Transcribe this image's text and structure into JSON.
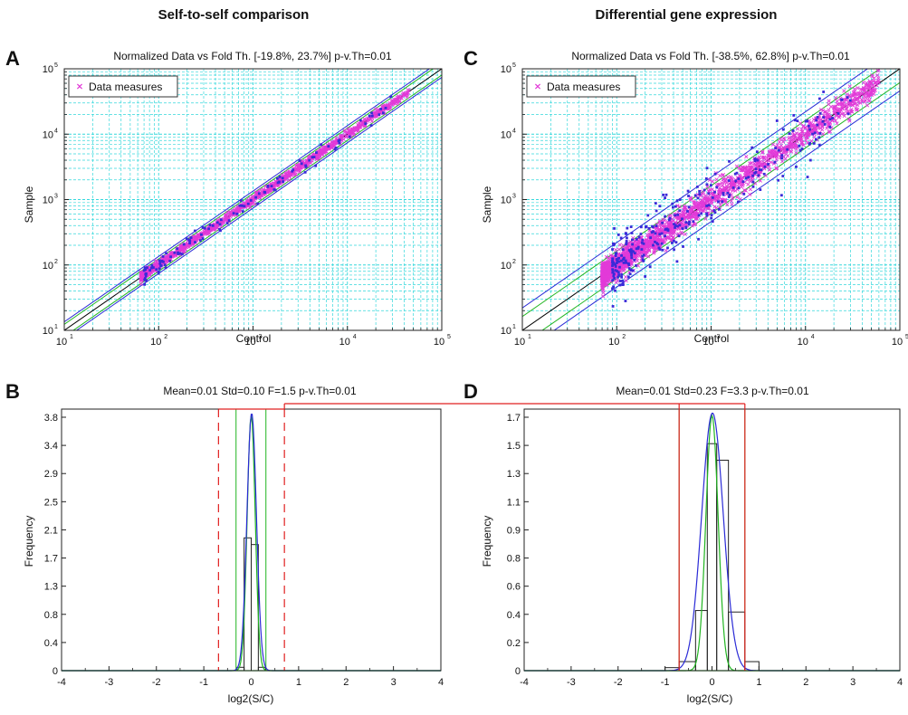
{
  "headings": {
    "left": "Self-to-self comparison",
    "right": "Differential gene expression"
  },
  "chart_data": [
    {
      "type": "scatter",
      "panel": "A",
      "title": "Normalized Data vs Fold Th. [-19.8%, 23.7%] p-v.Th=0.01",
      "xlabel": "Control",
      "ylabel": "Sample",
      "log_scale": true,
      "xlim": [
        10,
        100000
      ],
      "ylim": [
        10,
        100000
      ],
      "xticks": [
        "10",
        "10",
        "10",
        "10",
        "10"
      ],
      "tick_exponents": [
        "1",
        "2",
        "3",
        "4",
        "5"
      ],
      "grid": true,
      "legend": {
        "label": "Data measures",
        "position": "top-left",
        "marker": "x"
      },
      "series": [
        {
          "name": "Data measures",
          "marker": "x",
          "color": "#e23ad8",
          "x_range": [
            65,
            45000
          ],
          "spread_log10": 0.03,
          "approx_points": 1200
        },
        {
          "marker": "square",
          "color": "#3a2bd8",
          "x_range": [
            70,
            30000
          ],
          "spread_log10": 0.05,
          "approx_points": 120
        }
      ],
      "reference_lines": [
        {
          "label": "y=x",
          "color": "#000000",
          "factor": 1.0
        },
        {
          "color": "#21b521",
          "factor": 1.237
        },
        {
          "color": "#21b521",
          "factor": 0.802
        },
        {
          "color": "#2a2ad6",
          "factor": 1.35
        },
        {
          "color": "#2a2ad6",
          "factor": 0.74
        }
      ]
    },
    {
      "type": "scatter",
      "panel": "C",
      "title": "Normalized Data vs Fold Th. [-38.5%, 62.8%] p-v.Th=0.01",
      "xlabel": "Control",
      "ylabel": "Sample",
      "log_scale": true,
      "xlim": [
        10,
        100000
      ],
      "ylim": [
        10,
        100000
      ],
      "xticks": [
        "10",
        "10",
        "10",
        "10",
        "10"
      ],
      "tick_exponents": [
        "1",
        "2",
        "3",
        "4",
        "5"
      ],
      "grid": true,
      "legend": {
        "label": "Data measures",
        "position": "top-left",
        "marker": "x"
      },
      "series": [
        {
          "name": "Data measures",
          "marker": "x",
          "color": "#e23ad8",
          "x_range": [
            70,
            60000
          ],
          "spread_log10": 0.1,
          "approx_points": 1800
        },
        {
          "marker": "square",
          "color": "#3a2bd8",
          "x_range": [
            90,
            30000
          ],
          "spread_log10": 0.2,
          "approx_points": 300
        }
      ],
      "reference_lines": [
        {
          "label": "y=x",
          "color": "#000000",
          "factor": 1.0
        },
        {
          "color": "#21b521",
          "factor": 1.628
        },
        {
          "color": "#21b521",
          "factor": 0.615
        },
        {
          "color": "#2a2ad6",
          "factor": 2.2
        },
        {
          "color": "#2a2ad6",
          "factor": 0.46
        }
      ]
    },
    {
      "type": "bar",
      "panel": "B",
      "title": "Mean=0.01 Std=0.10 F=1.5 p-v.Th=0.01",
      "xlabel": "log2(S/C)",
      "ylabel": "Frequency",
      "xlim": [
        -4,
        4
      ],
      "ylim": [
        0,
        3.9
      ],
      "xticks": [
        "-4",
        "-3",
        "-2",
        "-1",
        "0",
        "1",
        "2",
        "3",
        "4"
      ],
      "yticks": [
        "0",
        "0.4",
        "0.8",
        "1.3",
        "1.7",
        "2.1",
        "2.5",
        "2.9",
        "3.4",
        "3.8"
      ],
      "bin_edges": [
        -0.3,
        -0.15,
        0.0,
        0.15,
        0.3
      ],
      "values": [
        0.05,
        1.98,
        1.88,
        0.05
      ],
      "gaussian": {
        "mean": 0.01,
        "std": 0.1,
        "color": "#2a2ad6"
      },
      "green_gaussian": {
        "mean": 0.0,
        "std": 0.085,
        "color": "#21b521"
      },
      "fold_threshold_lines": {
        "x": [
          -0.32,
          0.31
        ],
        "color": "#21b521"
      },
      "reference_threshold_lines": {
        "x": [
          -0.69,
          0.7
        ],
        "color": "#e02020",
        "style": "dashed"
      }
    },
    {
      "type": "bar",
      "panel": "D",
      "title": "Mean=0.01 Std=0.23 F=3.3 p-v.Th=0.01",
      "xlabel": "log2(S/C)",
      "ylabel": "Frequency",
      "xlim": [
        -4,
        4
      ],
      "ylim": [
        0,
        1.74
      ],
      "xticks": [
        "-4",
        "-3",
        "-2",
        "-1",
        "0",
        "1",
        "2",
        "3",
        "4"
      ],
      "yticks": [
        "0",
        "0.2",
        "0.4",
        "0.6",
        "0.8",
        "0.9",
        "1.1",
        "1.3",
        "1.5",
        "1.7"
      ],
      "bin_edges": [
        -1.0,
        -0.7,
        -0.35,
        -0.1,
        0.1,
        0.35,
        0.7,
        1.0
      ],
      "values": [
        0.02,
        0.06,
        0.4,
        1.51,
        1.4,
        0.39,
        0.06
      ],
      "gaussian": {
        "mean": 0.01,
        "std": 0.23,
        "color": "#2a2ad6"
      },
      "green_gaussian": {
        "mean": 0.0,
        "std": 0.13,
        "color": "#21b521"
      },
      "fold_threshold_lines": {
        "x": [
          -0.7,
          0.7
        ],
        "color": "#21b521"
      },
      "reference_threshold_lines": {
        "x": [
          -0.7,
          0.7
        ],
        "color": "#e02020",
        "style": "solid"
      }
    }
  ],
  "colors": {
    "grid": "#35d8dc",
    "accent_red": "#e02020"
  }
}
